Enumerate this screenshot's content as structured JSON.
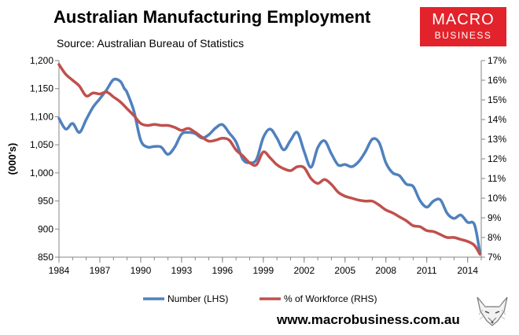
{
  "header": {
    "title": "Australian Manufacturing Employment",
    "subtitle": "Source: Australian Bureau of Statistics"
  },
  "logo": {
    "line1": "MACRO",
    "line2": "BUSINESS",
    "color": "#e2232b",
    "icon": "fox-icon"
  },
  "footer": {
    "website": "www.macrobusiness.com.au"
  },
  "chart_data": {
    "type": "line",
    "title": "Australian Manufacturing Employment",
    "ylabel": "(000's)",
    "xlabel": "",
    "xlim": [
      1984,
      2015
    ],
    "ylim": [
      850,
      1200
    ],
    "y2lim": [
      7,
      17
    ],
    "x_ticks": [
      1984,
      1987,
      1990,
      1993,
      1996,
      1999,
      2002,
      2005,
      2008,
      2011,
      2014
    ],
    "x_tick_labels": [
      "1984",
      "1987",
      "1990",
      "1993",
      "1996",
      "1999",
      "2002",
      "2005",
      "2008",
      "2011",
      "2014"
    ],
    "y_ticks": [
      850,
      900,
      950,
      1000,
      1050,
      1100,
      1150,
      1200
    ],
    "y_tick_labels": [
      "850",
      "900",
      "950",
      "1,000",
      "1,050",
      "1,100",
      "1,150",
      "1,200"
    ],
    "y2_ticks": [
      7,
      8,
      9,
      10,
      11,
      12,
      13,
      14,
      15,
      16,
      17
    ],
    "y2_tick_labels": [
      "7%",
      "8%",
      "9%",
      "10%",
      "11%",
      "12%",
      "13%",
      "14%",
      "15%",
      "16%",
      "17%"
    ],
    "grid": false,
    "legend_position": "bottom-left",
    "series": [
      {
        "name": "Number (LHS)",
        "axis": "left",
        "color": "#4f81bd",
        "x": [
          1984.0,
          1984.5,
          1985.0,
          1985.5,
          1986.0,
          1986.5,
          1987.0,
          1987.5,
          1988.0,
          1988.5,
          1988.8,
          1989.0,
          1989.5,
          1990.0,
          1990.5,
          1991.0,
          1991.5,
          1992.0,
          1992.5,
          1993.0,
          1993.5,
          1994.0,
          1994.5,
          1995.0,
          1995.5,
          1996.0,
          1996.5,
          1997.0,
          1997.5,
          1998.0,
          1998.5,
          1999.0,
          1999.5,
          2000.0,
          2000.5,
          2001.0,
          2001.5,
          2002.0,
          2002.5,
          2003.0,
          2003.5,
          2004.0,
          2004.5,
          2005.0,
          2005.5,
          2006.0,
          2006.5,
          2007.0,
          2007.5,
          2008.0,
          2008.5,
          2009.0,
          2009.5,
          2010.0,
          2010.5,
          2011.0,
          2011.5,
          2012.0,
          2012.5,
          2013.0,
          2013.5,
          2014.0,
          2014.5,
          2014.9
        ],
        "values": [
          1097,
          1078,
          1088,
          1072,
          1095,
          1117,
          1132,
          1148,
          1166,
          1163,
          1150,
          1143,
          1110,
          1058,
          1046,
          1047,
          1046,
          1033,
          1046,
          1069,
          1072,
          1070,
          1062,
          1068,
          1080,
          1086,
          1071,
          1055,
          1024,
          1018,
          1024,
          1063,
          1078,
          1062,
          1041,
          1058,
          1072,
          1038,
          1010,
          1045,
          1057,
          1034,
          1014,
          1015,
          1011,
          1020,
          1038,
          1060,
          1054,
          1018,
          1000,
          995,
          980,
          976,
          951,
          939,
          950,
          952,
          928,
          919,
          925,
          912,
          908,
          858
        ]
      },
      {
        "name": "% of Workforce (RHS)",
        "axis": "right",
        "color": "#c0504d",
        "x": [
          1984.0,
          1984.5,
          1985.0,
          1985.5,
          1986.0,
          1986.5,
          1987.0,
          1987.5,
          1988.0,
          1988.5,
          1989.0,
          1989.5,
          1990.0,
          1990.5,
          1991.0,
          1991.5,
          1992.0,
          1992.5,
          1993.0,
          1993.5,
          1994.0,
          1994.5,
          1995.0,
          1995.5,
          1996.0,
          1996.5,
          1997.0,
          1997.5,
          1998.0,
          1998.5,
          1999.0,
          1999.5,
          2000.0,
          2000.5,
          2001.0,
          2001.5,
          2002.0,
          2002.5,
          2003.0,
          2003.5,
          2004.0,
          2004.5,
          2005.0,
          2005.5,
          2006.0,
          2006.5,
          2007.0,
          2007.5,
          2008.0,
          2008.5,
          2009.0,
          2009.5,
          2010.0,
          2010.5,
          2011.0,
          2011.5,
          2012.0,
          2012.5,
          2013.0,
          2013.5,
          2014.0,
          2014.5,
          2014.9
        ],
        "values": [
          16.8,
          16.3,
          16.0,
          15.7,
          15.2,
          15.35,
          15.3,
          15.4,
          15.15,
          14.9,
          14.55,
          14.2,
          13.8,
          13.7,
          13.75,
          13.7,
          13.7,
          13.6,
          13.45,
          13.55,
          13.35,
          13.1,
          12.9,
          12.95,
          13.05,
          12.95,
          12.45,
          12.15,
          11.8,
          11.7,
          12.35,
          12.05,
          11.7,
          11.5,
          11.4,
          11.6,
          11.55,
          11.0,
          10.75,
          10.95,
          10.7,
          10.3,
          10.1,
          10.0,
          9.9,
          9.85,
          9.85,
          9.65,
          9.4,
          9.25,
          9.05,
          8.85,
          8.6,
          8.55,
          8.35,
          8.3,
          8.15,
          8.0,
          8.0,
          7.9,
          7.8,
          7.6,
          7.15
        ]
      }
    ]
  }
}
